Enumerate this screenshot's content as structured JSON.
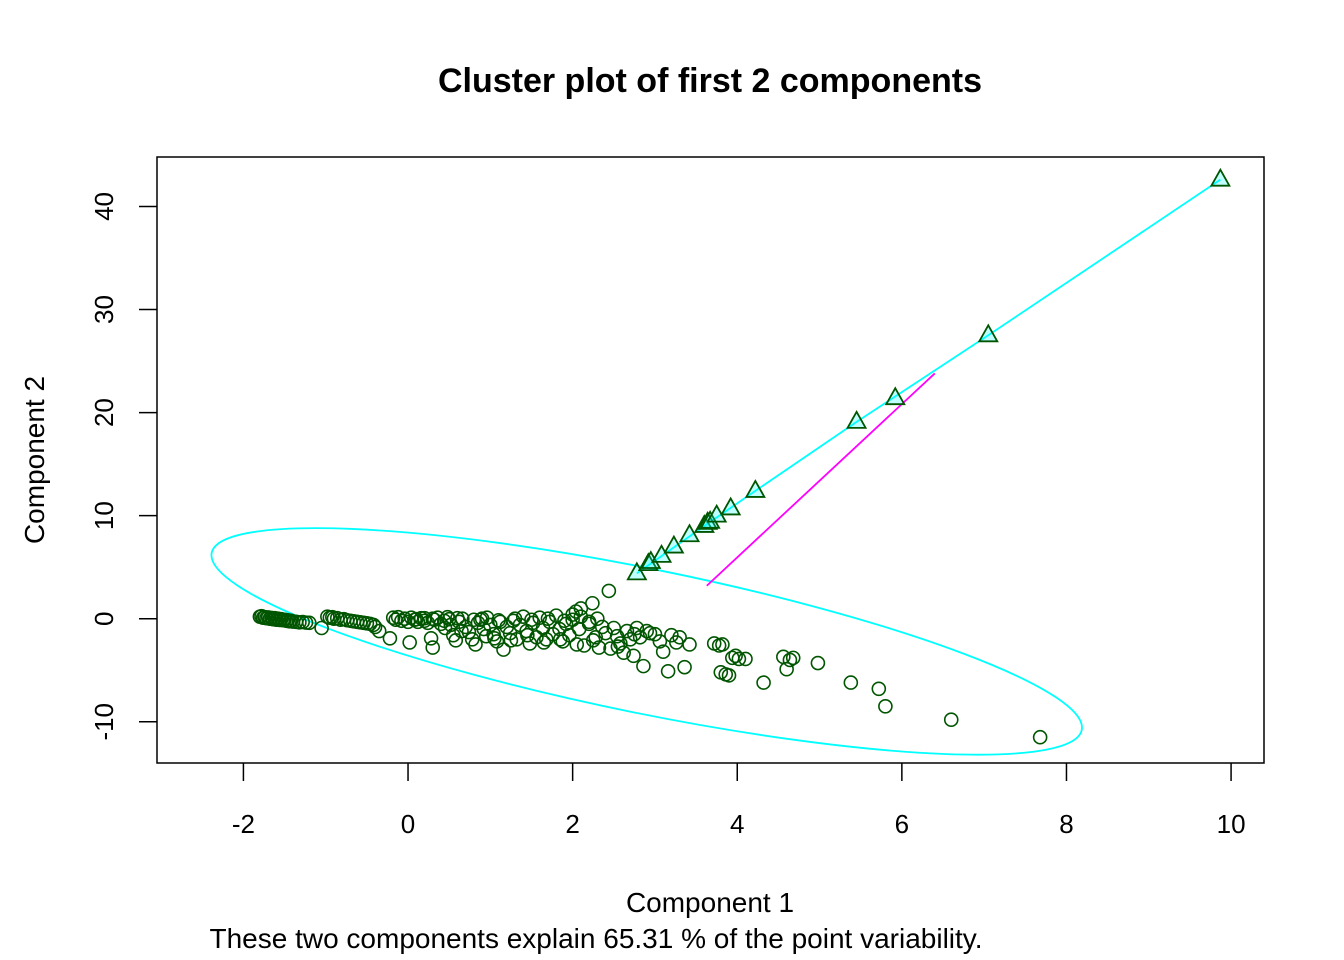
{
  "chart_data": {
    "type": "scatter",
    "title": "Cluster plot of first 2 components",
    "xlabel": "Component 1",
    "ylabel": "Component 2",
    "subtitle": "These two components explain 65.31 % of the point variability.",
    "xlim": [
      -3.05,
      10.4
    ],
    "ylim": [
      -14,
      44.8
    ],
    "xticks": [
      -2,
      0,
      2,
      4,
      6,
      8,
      10
    ],
    "yticks": [
      -10,
      0,
      10,
      20,
      30,
      40
    ],
    "grid": false,
    "colors": {
      "points": "#005500",
      "triangle_fill": "#00ffff",
      "ellipse": "#00ffff",
      "segment": "#ff00ff"
    },
    "triangles": [
      [
        2.78,
        4.4
      ],
      [
        2.92,
        5.3
      ],
      [
        2.95,
        5.5
      ],
      [
        3.08,
        6.1
      ],
      [
        3.23,
        7.0
      ],
      [
        3.42,
        8.1
      ],
      [
        3.6,
        9.0
      ],
      [
        3.64,
        9.3
      ],
      [
        3.67,
        9.4
      ],
      [
        3.75,
        10.0
      ],
      [
        3.92,
        10.7
      ],
      [
        4.22,
        12.4
      ],
      [
        5.45,
        19.1
      ],
      [
        5.92,
        21.4
      ],
      [
        7.05,
        27.5
      ],
      [
        9.87,
        42.6
      ]
    ],
    "triangle_hull": [
      [
        2.78,
        4.4
      ],
      [
        3.6,
        9.0
      ],
      [
        4.22,
        12.4
      ],
      [
        5.45,
        19.1
      ],
      [
        7.05,
        27.5
      ],
      [
        9.87,
        42.6
      ]
    ],
    "ellipse": {
      "center": [
        2.9,
        -2.2
      ],
      "semi_major": 5.8,
      "semi_minor": 5.0
    },
    "segment": [
      [
        3.63,
        3.2
      ],
      [
        6.4,
        23.8
      ]
    ],
    "circle_points": [
      [
        -1.8,
        0.2
      ],
      [
        -1.78,
        0.25
      ],
      [
        -1.76,
        0.1
      ],
      [
        -1.74,
        0.15
      ],
      [
        -1.72,
        0.05
      ],
      [
        -1.7,
        0.12
      ],
      [
        -1.68,
        0.0
      ],
      [
        -1.66,
        0.08
      ],
      [
        -1.64,
        -0.05
      ],
      [
        -1.62,
        0.05
      ],
      [
        -1.6,
        -0.1
      ],
      [
        -1.58,
        0.0
      ],
      [
        -1.56,
        -0.12
      ],
      [
        -1.54,
        -0.05
      ],
      [
        -1.52,
        -0.15
      ],
      [
        -1.5,
        -0.1
      ],
      [
        -1.48,
        -0.2
      ],
      [
        -1.46,
        -0.15
      ],
      [
        -1.44,
        -0.25
      ],
      [
        -1.42,
        -0.2
      ],
      [
        -1.4,
        -0.28
      ],
      [
        -1.36,
        -0.3
      ],
      [
        -1.32,
        -0.35
      ],
      [
        -1.28,
        -0.32
      ],
      [
        -1.24,
        -0.38
      ],
      [
        -1.2,
        -0.4
      ],
      [
        -1.05,
        -0.9
      ],
      [
        -0.98,
        0.2
      ],
      [
        -0.95,
        0.1
      ],
      [
        -0.92,
        0.15
      ],
      [
        -0.9,
        0.0
      ],
      [
        -0.86,
        0.05
      ],
      [
        -0.82,
        -0.1
      ],
      [
        -0.78,
        -0.05
      ],
      [
        -0.74,
        -0.15
      ],
      [
        -0.7,
        -0.2
      ],
      [
        -0.66,
        -0.25
      ],
      [
        -0.62,
        -0.3
      ],
      [
        -0.58,
        -0.35
      ],
      [
        -0.54,
        -0.4
      ],
      [
        -0.5,
        -0.45
      ],
      [
        -0.46,
        -0.5
      ],
      [
        -0.42,
        -0.6
      ],
      [
        -0.4,
        -0.8
      ],
      [
        -0.35,
        -1.2
      ],
      [
        -0.22,
        -1.9
      ],
      [
        -0.18,
        0.1
      ],
      [
        -0.15,
        -0.1
      ],
      [
        -0.12,
        0.15
      ],
      [
        -0.08,
        -0.2
      ],
      [
        -0.04,
        0.0
      ],
      [
        0.0,
        -0.3
      ],
      [
        0.02,
        -2.3
      ],
      [
        0.04,
        0.1
      ],
      [
        0.08,
        -0.1
      ],
      [
        0.12,
        -0.3
      ],
      [
        0.16,
        0.05
      ],
      [
        0.2,
        -0.2
      ],
      [
        0.24,
        -0.4
      ],
      [
        0.28,
        -1.9
      ],
      [
        0.3,
        -2.8
      ],
      [
        0.32,
        -0.1
      ],
      [
        0.36,
        0.1
      ],
      [
        0.4,
        -0.5
      ],
      [
        0.44,
        -0.2
      ],
      [
        0.48,
        0.15
      ],
      [
        0.52,
        -0.6
      ],
      [
        0.55,
        -1.6
      ],
      [
        0.58,
        -2.1
      ],
      [
        0.62,
        -0.3
      ],
      [
        0.66,
        0.0
      ],
      [
        0.7,
        -0.8
      ],
      [
        0.74,
        -1.3
      ],
      [
        0.78,
        -2.0
      ],
      [
        0.82,
        -2.5
      ],
      [
        0.85,
        -0.4
      ],
      [
        0.88,
        -0.1
      ],
      [
        0.92,
        -1.0
      ],
      [
        0.96,
        0.1
      ],
      [
        1.0,
        -0.6
      ],
      [
        1.04,
        -1.5
      ],
      [
        1.08,
        -2.2
      ],
      [
        1.12,
        -0.3
      ],
      [
        1.16,
        -3.0
      ],
      [
        1.2,
        -0.8
      ],
      [
        1.24,
        -1.4
      ],
      [
        1.28,
        -0.2
      ],
      [
        1.32,
        -2.0
      ],
      [
        1.36,
        -0.6
      ],
      [
        1.4,
        0.2
      ],
      [
        1.44,
        -1.2
      ],
      [
        1.48,
        -2.4
      ],
      [
        1.52,
        -0.4
      ],
      [
        1.56,
        -1.8
      ],
      [
        1.6,
        0.1
      ],
      [
        1.64,
        -0.9
      ],
      [
        1.68,
        -2.0
      ],
      [
        1.72,
        -0.3
      ],
      [
        1.76,
        -1.5
      ],
      [
        1.8,
        0.3
      ],
      [
        1.84,
        -1.0
      ],
      [
        1.88,
        -2.2
      ],
      [
        1.92,
        -0.5
      ],
      [
        1.96,
        -1.6
      ],
      [
        2.0,
        0.4
      ],
      [
        2.04,
        0.7
      ],
      [
        2.08,
        -1.0
      ],
      [
        2.1,
        1.0
      ],
      [
        2.14,
        -2.6
      ],
      [
        2.2,
        -0.5
      ],
      [
        2.24,
        1.5
      ],
      [
        2.28,
        -1.8
      ],
      [
        2.32,
        -2.8
      ],
      [
        2.36,
        -0.8
      ],
      [
        2.4,
        -1.4
      ],
      [
        2.44,
        2.7
      ],
      [
        2.46,
        -2.9
      ],
      [
        2.5,
        -0.9
      ],
      [
        2.54,
        -1.7
      ],
      [
        2.58,
        -2.4
      ],
      [
        2.62,
        -3.3
      ],
      [
        2.66,
        -1.2
      ],
      [
        2.7,
        -2.0
      ],
      [
        2.74,
        -3.6
      ],
      [
        2.78,
        -0.9
      ],
      [
        2.82,
        -1.8
      ],
      [
        2.86,
        -4.6
      ],
      [
        2.9,
        -1.2
      ],
      [
        2.94,
        -1.4
      ],
      [
        3.0,
        -1.5
      ],
      [
        3.06,
        -2.2
      ],
      [
        3.1,
        -3.2
      ],
      [
        3.16,
        -5.1
      ],
      [
        3.2,
        -1.6
      ],
      [
        3.26,
        -2.3
      ],
      [
        3.3,
        -1.8
      ],
      [
        3.36,
        -4.7
      ],
      [
        3.42,
        -2.5
      ],
      [
        3.72,
        -2.4
      ],
      [
        3.78,
        -2.6
      ],
      [
        3.8,
        -5.2
      ],
      [
        3.82,
        -2.5
      ],
      [
        3.86,
        -5.4
      ],
      [
        3.9,
        -5.5
      ],
      [
        3.94,
        -3.8
      ],
      [
        3.98,
        -3.6
      ],
      [
        4.02,
        -3.9
      ],
      [
        4.1,
        -3.9
      ],
      [
        4.32,
        -6.2
      ],
      [
        4.56,
        -3.7
      ],
      [
        4.6,
        -4.9
      ],
      [
        4.64,
        -4.0
      ],
      [
        4.68,
        -3.8
      ],
      [
        4.98,
        -4.3
      ],
      [
        5.38,
        -6.2
      ],
      [
        5.72,
        -6.8
      ],
      [
        5.8,
        -8.5
      ],
      [
        6.6,
        -9.8
      ],
      [
        7.68,
        -11.5
      ],
      [
        0.1,
        -0.05
      ],
      [
        0.2,
        0.05
      ],
      [
        0.3,
        0.0
      ],
      [
        0.5,
        -0.05
      ],
      [
        0.6,
        0.05
      ],
      [
        0.8,
        -0.1
      ],
      [
        0.9,
        0.0
      ],
      [
        1.1,
        -0.15
      ],
      [
        1.3,
        0.0
      ],
      [
        1.5,
        -0.1
      ],
      [
        1.7,
        0.0
      ],
      [
        1.9,
        -0.2
      ],
      [
        2.0,
        -0.1
      ],
      [
        2.1,
        0.2
      ],
      [
        2.2,
        -0.3
      ],
      [
        2.3,
        0.0
      ],
      [
        0.45,
        -0.9
      ],
      [
        0.65,
        -1.2
      ],
      [
        0.95,
        -1.7
      ],
      [
        1.05,
        -1.9
      ],
      [
        1.25,
        -2.1
      ],
      [
        1.45,
        -1.6
      ],
      [
        1.65,
        -2.3
      ],
      [
        1.85,
        -2.0
      ],
      [
        2.05,
        -2.5
      ],
      [
        2.25,
        -2.1
      ],
      [
        2.55,
        -2.7
      ],
      [
        2.75,
        -1.5
      ]
    ]
  }
}
